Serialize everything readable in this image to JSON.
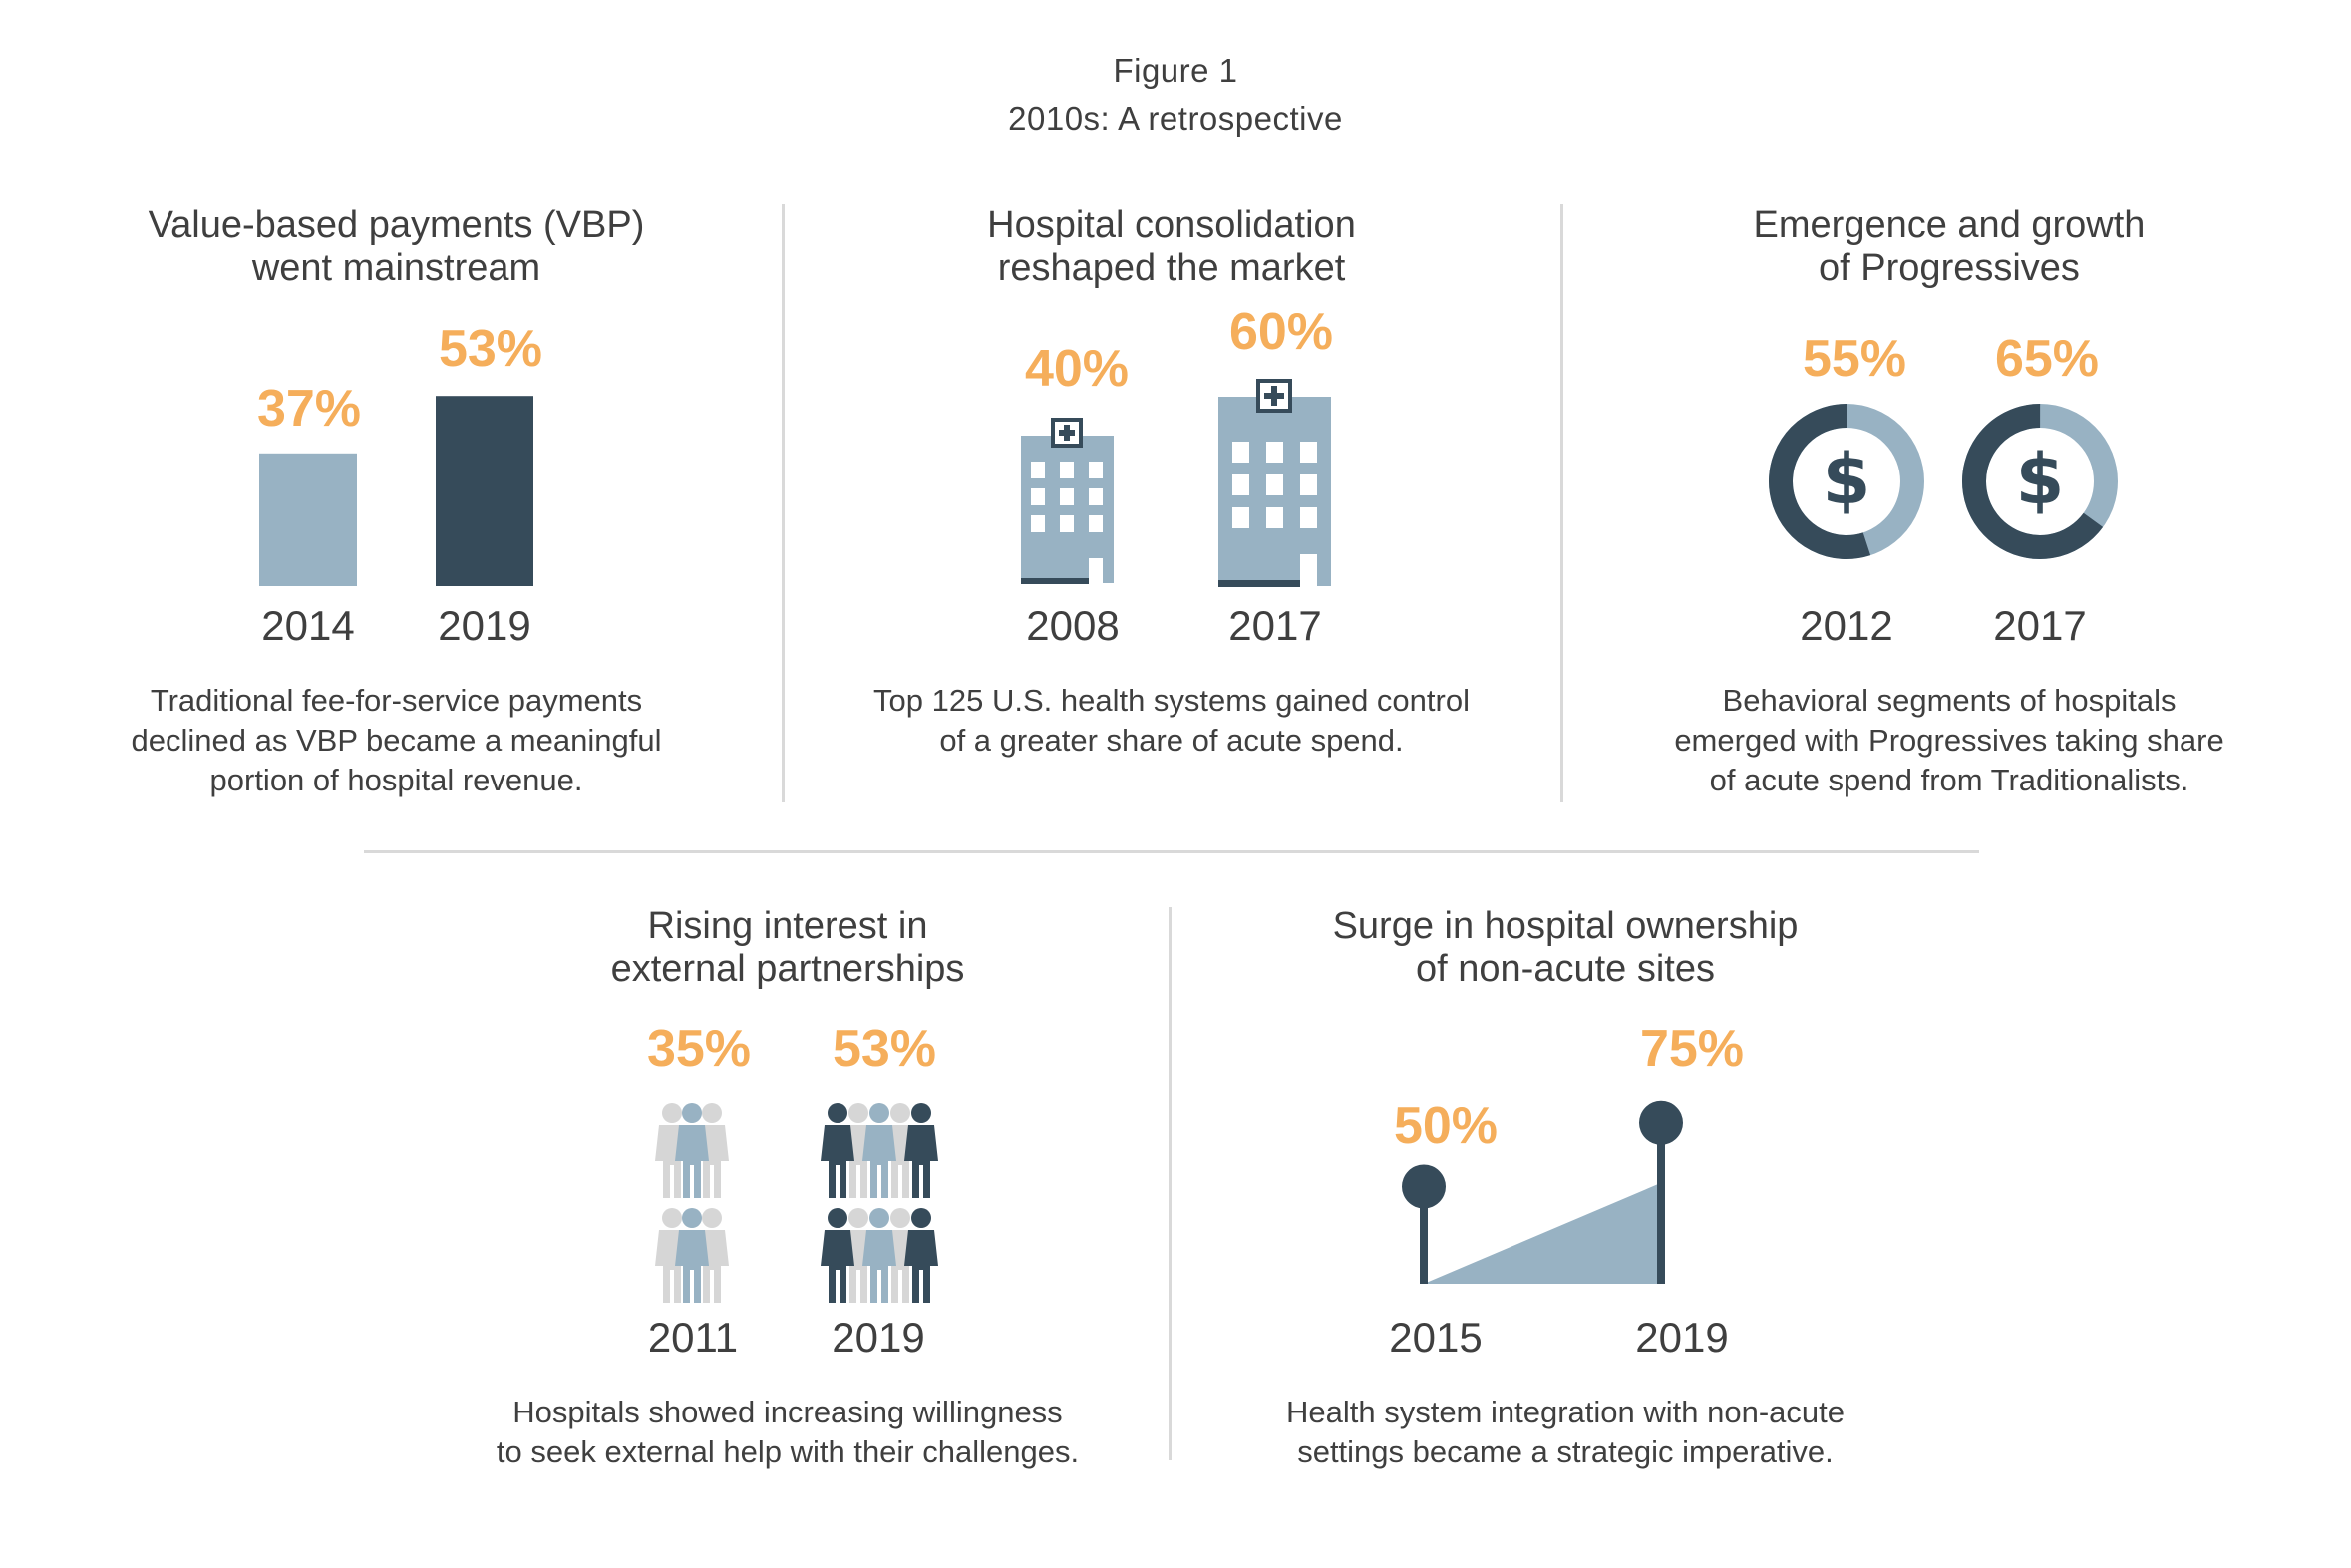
{
  "figure": {
    "title": "Figure 1",
    "subtitle": "2010s: A retrospective"
  },
  "colors": {
    "accent_orange": "#f5ae5b",
    "dark_slate": "#364b5a",
    "light_blue": "#98b2c3",
    "light_gray": "#d6d6d6",
    "text": "#3f3f3f"
  },
  "panels": [
    {
      "title": "Value-based payments (VBP)\nwent mainstream",
      "caption": "Traditional fee-for-service payments\ndeclined as VBP became a meaningful\nportion of hospital revenue.",
      "icon": "bar-chart-icon",
      "years": [
        "2014",
        "2019"
      ],
      "labels": [
        "37%",
        "53%"
      ]
    },
    {
      "title": "Hospital consolidation\nreshaped the market",
      "caption": "Top 125 U.S. health systems gained control\nof a greater share of acute spend.",
      "icon": "hospital-building-icon",
      "years": [
        "2008",
        "2017"
      ],
      "labels": [
        "40%",
        "60%"
      ]
    },
    {
      "title": "Emergence and growth\nof Progressives",
      "caption": "Behavioral segments of hospitals\nemerged with Progressives taking share\nof acute spend from Traditionalists.",
      "icon": "dollar-donut-icon",
      "years": [
        "2012",
        "2017"
      ],
      "labels": [
        "55%",
        "65%"
      ]
    },
    {
      "title": "Rising interest in\nexternal partnerships",
      "caption": "Hospitals showed increasing willingness\nto seek external help with their challenges.",
      "icon": "people-group-icon",
      "years": [
        "2011",
        "2019"
      ],
      "labels": [
        "35%",
        "53%"
      ]
    },
    {
      "title": "Surge in hospital ownership\nof non-acute sites",
      "caption": "Health system integration with non-acute\nsettings became a strategic imperative.",
      "icon": "lollipop-area-icon",
      "years": [
        "2015",
        "2019"
      ],
      "labels": [
        "50%",
        "75%"
      ]
    }
  ],
  "chart_data": [
    {
      "type": "bar",
      "title": "Value-based payments (VBP) went mainstream",
      "categories": [
        "2014",
        "2019"
      ],
      "values": [
        37,
        53
      ],
      "unit": "%"
    },
    {
      "type": "bar",
      "title": "Hospital consolidation reshaped the market",
      "categories": [
        "2008",
        "2017"
      ],
      "values": [
        40,
        60
      ],
      "unit": "%"
    },
    {
      "type": "pie",
      "title": "Emergence and growth of Progressives",
      "categories": [
        "2012",
        "2017"
      ],
      "values": [
        55,
        65
      ],
      "unit": "%"
    },
    {
      "type": "bar",
      "title": "Rising interest in external partnerships",
      "categories": [
        "2011",
        "2019"
      ],
      "values": [
        35,
        53
      ],
      "unit": "%"
    },
    {
      "type": "area",
      "title": "Surge in hospital ownership of non-acute sites",
      "x": [
        "2015",
        "2019"
      ],
      "values": [
        50,
        75
      ],
      "unit": "%"
    }
  ]
}
